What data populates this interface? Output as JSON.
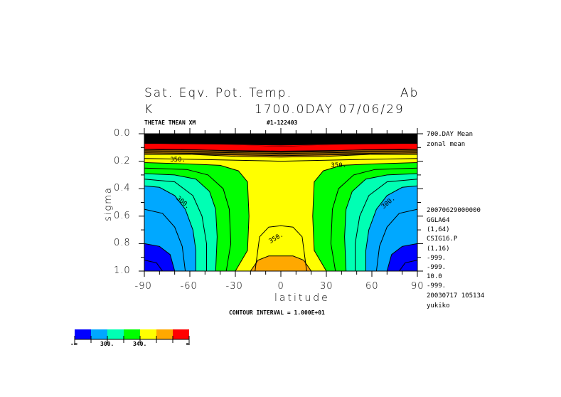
{
  "header": {
    "title": "Sat. Eqv. Pot. Temp.",
    "title_right": "Ab",
    "units": "K",
    "time": "1700.0DAY 07/06/29",
    "varname": "THETAE TMEAN XM",
    "run_id": "#1-122403"
  },
  "side_info": [
    "700.DAY Mean",
    "zonal mean",
    "20070629000000",
    "GGLA64",
    "(1,64)",
    "CSIG16.P",
    "(1,16)",
    "-999.",
    "-999.",
    "10.0",
    "-999.",
    "20030717 105134",
    "yukiko"
  ],
  "footer": {
    "contour_interval": "CONTOUR INTERVAL = 1.000E+01"
  },
  "chart_data": {
    "type": "contour",
    "title": "Sat. Eqv. Pot. Temp.",
    "xlabel": "latitude",
    "ylabel": "sigma",
    "xlim": [
      -90,
      90
    ],
    "ylim": [
      0.0,
      1.0
    ],
    "y_inverted": true,
    "xticks": [
      "-90",
      "-60",
      "-30",
      "0",
      "30",
      "60",
      "90"
    ],
    "xtick_values": [
      -90,
      -60,
      -30,
      0,
      30,
      60,
      90
    ],
    "yticks": [
      "0.0",
      "0.2",
      "0.4",
      "0.6",
      "0.8",
      "1.0"
    ],
    "ytick_values": [
      0.0,
      0.2,
      0.4,
      0.6,
      0.8,
      1.0
    ],
    "contour_interval": 10,
    "shade_levels": [
      280,
      300,
      320,
      340,
      360,
      380
    ],
    "colors": [
      "#0000ff",
      "#00a8ff",
      "#00ffb4",
      "#00ff00",
      "#ffff00",
      "#ffa800",
      "#ff0000"
    ],
    "colorbar_labels": [
      "-∞",
      "300.",
      "340.",
      "∞"
    ],
    "contour_labels": [
      {
        "text": "350.",
        "lat": -73,
        "sigma": 0.17
      },
      {
        "text": "350.",
        "lat": 33,
        "sigma": 0.21
      },
      {
        "text": "300.",
        "lat": -70,
        "sigma": 0.48
      },
      {
        "text": "300.",
        "lat": 66,
        "sigma": 0.48
      },
      {
        "text": "350.",
        "lat": -8,
        "sigma": 0.74
      }
    ],
    "regions": [
      {
        "level": 300,
        "half": [
          [
            -90,
            0
          ],
          [
            -90,
            0.38
          ],
          [
            -80,
            0.39
          ],
          [
            -70,
            0.45
          ],
          [
            -63,
            0.55
          ],
          [
            -58,
            0.7
          ],
          [
            -56,
            0.85
          ],
          [
            -56,
            1.0
          ]
        ]
      },
      {
        "level": 320,
        "half": [
          [
            -90,
            0
          ],
          [
            -90,
            0.29
          ],
          [
            -70,
            0.3
          ],
          [
            -56,
            0.33
          ],
          [
            -47,
            0.42
          ],
          [
            -43,
            0.55
          ],
          [
            -42,
            0.75
          ],
          [
            -43,
            1.0
          ]
        ]
      },
      {
        "level": 340,
        "half": [
          [
            -90,
            0
          ],
          [
            -90,
            0.21
          ],
          [
            -60,
            0.22
          ],
          [
            -40,
            0.23
          ],
          [
            -28,
            0.27
          ],
          [
            -22,
            0.35
          ],
          [
            -21,
            0.6
          ],
          [
            -22,
            0.85
          ],
          [
            -30,
            1.0
          ]
        ]
      },
      {
        "level": 360,
        "half": [
          [
            -90,
            0
          ],
          [
            -90,
            0.15
          ],
          [
            -60,
            0.15
          ],
          [
            -30,
            0.165
          ],
          [
            0,
            0.17
          ]
        ]
      },
      {
        "level": 380,
        "half": [
          [
            -90,
            0
          ],
          [
            -90,
            0.11
          ],
          [
            -60,
            0.115
          ],
          [
            -30,
            0.125
          ],
          [
            0,
            0.13
          ]
        ]
      },
      {
        "level": 400,
        "half": [
          [
            -90,
            0
          ],
          [
            -90,
            0.07
          ],
          [
            -50,
            0.075
          ],
          [
            0,
            0.09
          ]
        ]
      }
    ],
    "bottom_bump": {
      "level": 360,
      "half": [
        [
          -20,
          1.0
        ],
        [
          -15,
          0.92
        ],
        [
          -8,
          0.89
        ],
        [
          0,
          0.89
        ]
      ]
    },
    "extra_contours": [
      {
        "level": 350,
        "half": [
          [
            -17,
            1.0
          ],
          [
            -14,
            0.75
          ],
          [
            -8,
            0.68
          ],
          [
            0,
            0.67
          ]
        ]
      },
      {
        "level": 350,
        "half": [
          [
            -90,
            0.18
          ],
          [
            -40,
            0.19
          ],
          [
            0,
            0.2
          ]
        ]
      },
      {
        "level": 330,
        "half": [
          [
            -90,
            0.25
          ],
          [
            -62,
            0.26
          ],
          [
            -48,
            0.3
          ],
          [
            -38,
            0.4
          ],
          [
            -34,
            0.55
          ],
          [
            -33,
            0.8
          ],
          [
            -36,
            1.0
          ]
        ]
      },
      {
        "level": 310,
        "half": [
          [
            -90,
            0.33
          ],
          [
            -70,
            0.35
          ],
          [
            -58,
            0.45
          ],
          [
            -52,
            0.6
          ],
          [
            -49,
            0.8
          ],
          [
            -49,
            1.0
          ]
        ]
      },
      {
        "level": 290,
        "half": [
          [
            -90,
            0.55
          ],
          [
            -78,
            0.58
          ],
          [
            -70,
            0.68
          ],
          [
            -65,
            0.82
          ],
          [
            -63,
            1.0
          ]
        ]
      },
      {
        "level": 270,
        "half": [
          [
            -90,
            0.92
          ],
          [
            -82,
            0.94
          ],
          [
            -78,
            1.0
          ]
        ]
      }
    ],
    "blue_corner": {
      "level": 280,
      "half": [
        [
          -90,
          0.8
        ],
        [
          -80,
          0.82
        ],
        [
          -73,
          0.88
        ],
        [
          -70,
          1.0
        ]
      ]
    }
  }
}
